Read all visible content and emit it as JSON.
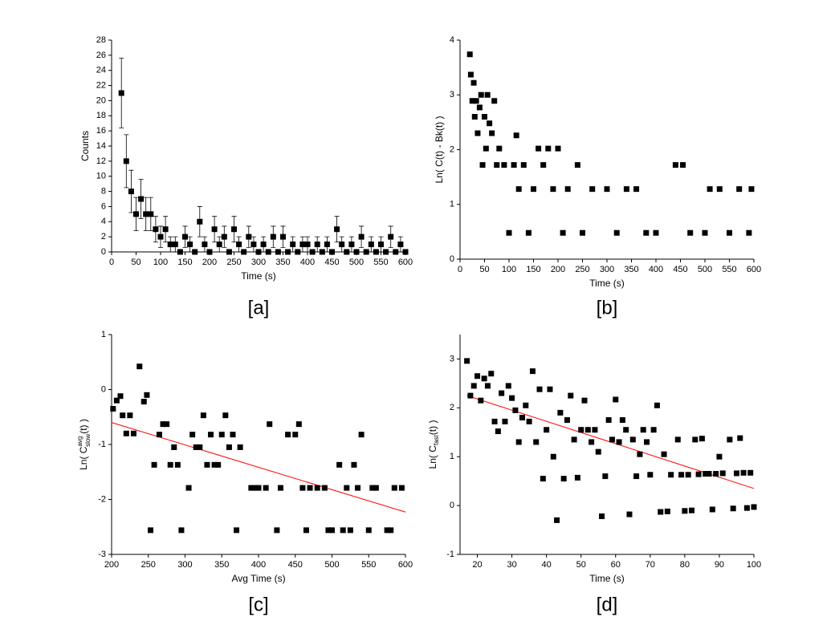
{
  "chart_data": [
    {
      "type": "scatter",
      "caption": "[a]",
      "xlabel": "Time (s)",
      "ylabel": "Counts",
      "color": "#000000",
      "xlim": [
        0,
        600
      ],
      "ylim": [
        0,
        28
      ],
      "xticks": [
        0,
        50,
        100,
        150,
        200,
        250,
        300,
        350,
        400,
        450,
        500,
        550,
        600
      ],
      "yticks": [
        0,
        2,
        4,
        6,
        8,
        10,
        12,
        14,
        16,
        18,
        20,
        22,
        24,
        26,
        28
      ],
      "x": [
        20,
        30,
        40,
        50,
        60,
        70,
        80,
        90,
        100,
        110,
        120,
        130,
        140,
        150,
        160,
        170,
        180,
        190,
        200,
        210,
        220,
        230,
        240,
        250,
        260,
        270,
        280,
        290,
        300,
        310,
        320,
        330,
        340,
        350,
        360,
        370,
        380,
        390,
        400,
        410,
        420,
        430,
        440,
        450,
        460,
        470,
        480,
        490,
        500,
        510,
        520,
        530,
        540,
        550,
        560,
        570,
        580,
        590,
        600
      ],
      "values": [
        21,
        12,
        8,
        5,
        7,
        5,
        5,
        3,
        2,
        3,
        1,
        1,
        0,
        2,
        1,
        0,
        4,
        1,
        0,
        3,
        1,
        2,
        0,
        3,
        1,
        0,
        2,
        1,
        0,
        1,
        0,
        2,
        0,
        2,
        0,
        1,
        0,
        1,
        1,
        0,
        1,
        0,
        1,
        0,
        3,
        1,
        0,
        1,
        0,
        2,
        0,
        1,
        0,
        1,
        0,
        2,
        0,
        1,
        0
      ],
      "errors": [
        4.6,
        3.5,
        2.8,
        2.2,
        2.6,
        2.2,
        2.2,
        1.7,
        1.4,
        1.7,
        1,
        1,
        0,
        1.4,
        1,
        0,
        2,
        1,
        0,
        1.7,
        1,
        1.4,
        0,
        1.7,
        1,
        0,
        1.4,
        1,
        0,
        1,
        0,
        1.4,
        0,
        1.4,
        0,
        1,
        0,
        1,
        1,
        0,
        1,
        0,
        1,
        0,
        1.7,
        1,
        0,
        1,
        0,
        1.4,
        0,
        1,
        0,
        1,
        0,
        1.4,
        0,
        1,
        0
      ]
    },
    {
      "type": "scatter",
      "caption": "[b]",
      "xlabel": "Time (s)",
      "ylabel": "Ln( C(t) - Bk(t) )",
      "color": "#000000",
      "xlim": [
        0,
        600
      ],
      "ylim": [
        0,
        4
      ],
      "xticks": [
        0,
        50,
        100,
        150,
        200,
        250,
        300,
        350,
        400,
        450,
        500,
        550,
        600
      ],
      "yticks": [
        0,
        1,
        2,
        3,
        4
      ],
      "x": [
        20,
        22,
        25,
        28,
        30,
        33,
        36,
        40,
        43,
        46,
        50,
        53,
        56,
        60,
        65,
        70,
        75,
        80,
        90,
        100,
        110,
        115,
        120,
        130,
        140,
        150,
        160,
        170,
        180,
        190,
        200,
        210,
        220,
        240,
        250,
        270,
        300,
        320,
        340,
        360,
        380,
        400,
        440,
        455,
        470,
        500,
        510,
        530,
        550,
        570,
        590,
        595
      ],
      "values": [
        3.74,
        3.37,
        2.89,
        3.22,
        2.6,
        2.89,
        2.3,
        2.77,
        3.0,
        1.72,
        2.6,
        2.02,
        3.0,
        2.48,
        2.3,
        2.89,
        1.72,
        2.02,
        1.72,
        0.48,
        1.72,
        2.26,
        1.28,
        1.72,
        0.48,
        1.28,
        2.02,
        1.72,
        2.02,
        1.28,
        2.02,
        0.48,
        1.28,
        1.72,
        0.48,
        1.28,
        1.28,
        0.48,
        1.28,
        1.28,
        0.48,
        0.48,
        1.72,
        1.72,
        0.48,
        0.48,
        1.28,
        1.28,
        0.48,
        1.28,
        0.48,
        1.28
      ]
    },
    {
      "type": "scatter",
      "caption": "[c]",
      "xlabel": "Avg Time (s)",
      "ylabel": {
        "prefix": "Ln( C",
        "sup": "avg",
        "sub": "slow",
        "suffix": "(t) )"
      },
      "color": "#000000",
      "xlim": [
        200,
        600
      ],
      "ylim": [
        -3,
        1
      ],
      "xticks": [
        200,
        250,
        300,
        350,
        400,
        450,
        500,
        550,
        600
      ],
      "yticks": [
        -3,
        -2,
        -1,
        0,
        1
      ],
      "x": [
        202,
        207,
        212,
        215,
        220,
        225,
        230,
        238,
        244,
        248,
        253,
        258,
        265,
        270,
        275,
        280,
        285,
        290,
        295,
        305,
        310,
        315,
        320,
        325,
        330,
        335,
        340,
        345,
        350,
        355,
        360,
        365,
        370,
        375,
        390,
        395,
        400,
        410,
        415,
        425,
        430,
        440,
        450,
        455,
        460,
        465,
        470,
        480,
        490,
        495,
        500,
        510,
        515,
        520,
        525,
        530,
        535,
        540,
        550,
        555,
        560,
        575,
        580,
        585,
        595
      ],
      "values": [
        -0.35,
        -0.2,
        -0.12,
        -0.47,
        -0.8,
        -0.47,
        -0.8,
        0.42,
        -0.22,
        -0.1,
        -2.56,
        -1.37,
        -0.82,
        -0.63,
        -0.63,
        -1.37,
        -1.05,
        -1.37,
        -2.56,
        -1.79,
        -0.82,
        -1.05,
        -1.05,
        -0.47,
        -1.37,
        -0.82,
        -1.37,
        -1.37,
        -0.82,
        -0.47,
        -1.05,
        -0.82,
        -2.56,
        -1.05,
        -1.79,
        -1.79,
        -1.79,
        -1.79,
        -0.63,
        -2.56,
        -1.79,
        -0.82,
        -0.82,
        -0.63,
        -1.79,
        -2.56,
        -1.79,
        -1.79,
        -1.79,
        -2.56,
        -2.56,
        -1.37,
        -2.56,
        -1.79,
        -2.56,
        -1.37,
        -1.79,
        -0.82,
        -2.56,
        -1.79,
        -1.79,
        -2.56,
        -2.56,
        -1.79,
        -1.79
      ],
      "fit": {
        "x": [
          200,
          600
        ],
        "values": [
          -0.6,
          -2.23
        ],
        "color": "#ff0000"
      }
    },
    {
      "type": "scatter",
      "caption": "[d]",
      "xlabel": "Time (s)",
      "ylabel": {
        "prefix": "Ln( C",
        "sub": "fast",
        "suffix": "(t) )"
      },
      "color": "#000000",
      "xlim": [
        15,
        100
      ],
      "ylim": [
        -1,
        3.5
      ],
      "xticks": [
        20,
        30,
        40,
        50,
        60,
        70,
        80,
        90,
        100
      ],
      "yticks": [
        -1,
        0,
        1,
        2,
        3
      ],
      "x": [
        17,
        18,
        19,
        20,
        21,
        22,
        23,
        24,
        25,
        26,
        27,
        28,
        29,
        30,
        31,
        32,
        33,
        34,
        35,
        36,
        37,
        38,
        39,
        40,
        41,
        42,
        43,
        44,
        45,
        46,
        47,
        48,
        49,
        50,
        51,
        52,
        53,
        54,
        55,
        56,
        57,
        58,
        59,
        60,
        61,
        62,
        63,
        64,
        65,
        66,
        67,
        68,
        69,
        70,
        71,
        72,
        73,
        74,
        75,
        76,
        78,
        79,
        80,
        81,
        82,
        83,
        84,
        85,
        86,
        87,
        88,
        89,
        90,
        91,
        93,
        94,
        95,
        96,
        97,
        98,
        99,
        100
      ],
      "values": [
        2.96,
        2.25,
        2.45,
        2.65,
        2.15,
        2.6,
        2.45,
        2.7,
        1.72,
        1.52,
        2.3,
        1.72,
        2.45,
        2.2,
        1.95,
        1.3,
        1.8,
        2.05,
        1.72,
        2.75,
        1.3,
        2.38,
        0.55,
        1.55,
        2.38,
        1.0,
        -0.3,
        1.9,
        0.55,
        1.75,
        2.25,
        1.35,
        0.57,
        1.55,
        2.15,
        1.55,
        1.3,
        1.55,
        1.1,
        -0.22,
        0.6,
        1.75,
        1.35,
        2.17,
        1.3,
        1.75,
        1.55,
        -0.18,
        1.35,
        0.6,
        1.05,
        1.55,
        1.3,
        0.63,
        1.55,
        2.05,
        -0.13,
        1.05,
        -0.12,
        0.63,
        1.35,
        0.63,
        -0.11,
        0.63,
        -0.1,
        1.35,
        0.64,
        1.37,
        0.65,
        0.65,
        -0.08,
        0.65,
        1.0,
        0.66,
        1.35,
        -0.06,
        0.66,
        1.38,
        0.67,
        -0.05,
        0.67,
        -0.03
      ],
      "fit": {
        "x": [
          17,
          100
        ],
        "values": [
          2.25,
          0.35
        ],
        "color": "#ff0000"
      }
    }
  ]
}
